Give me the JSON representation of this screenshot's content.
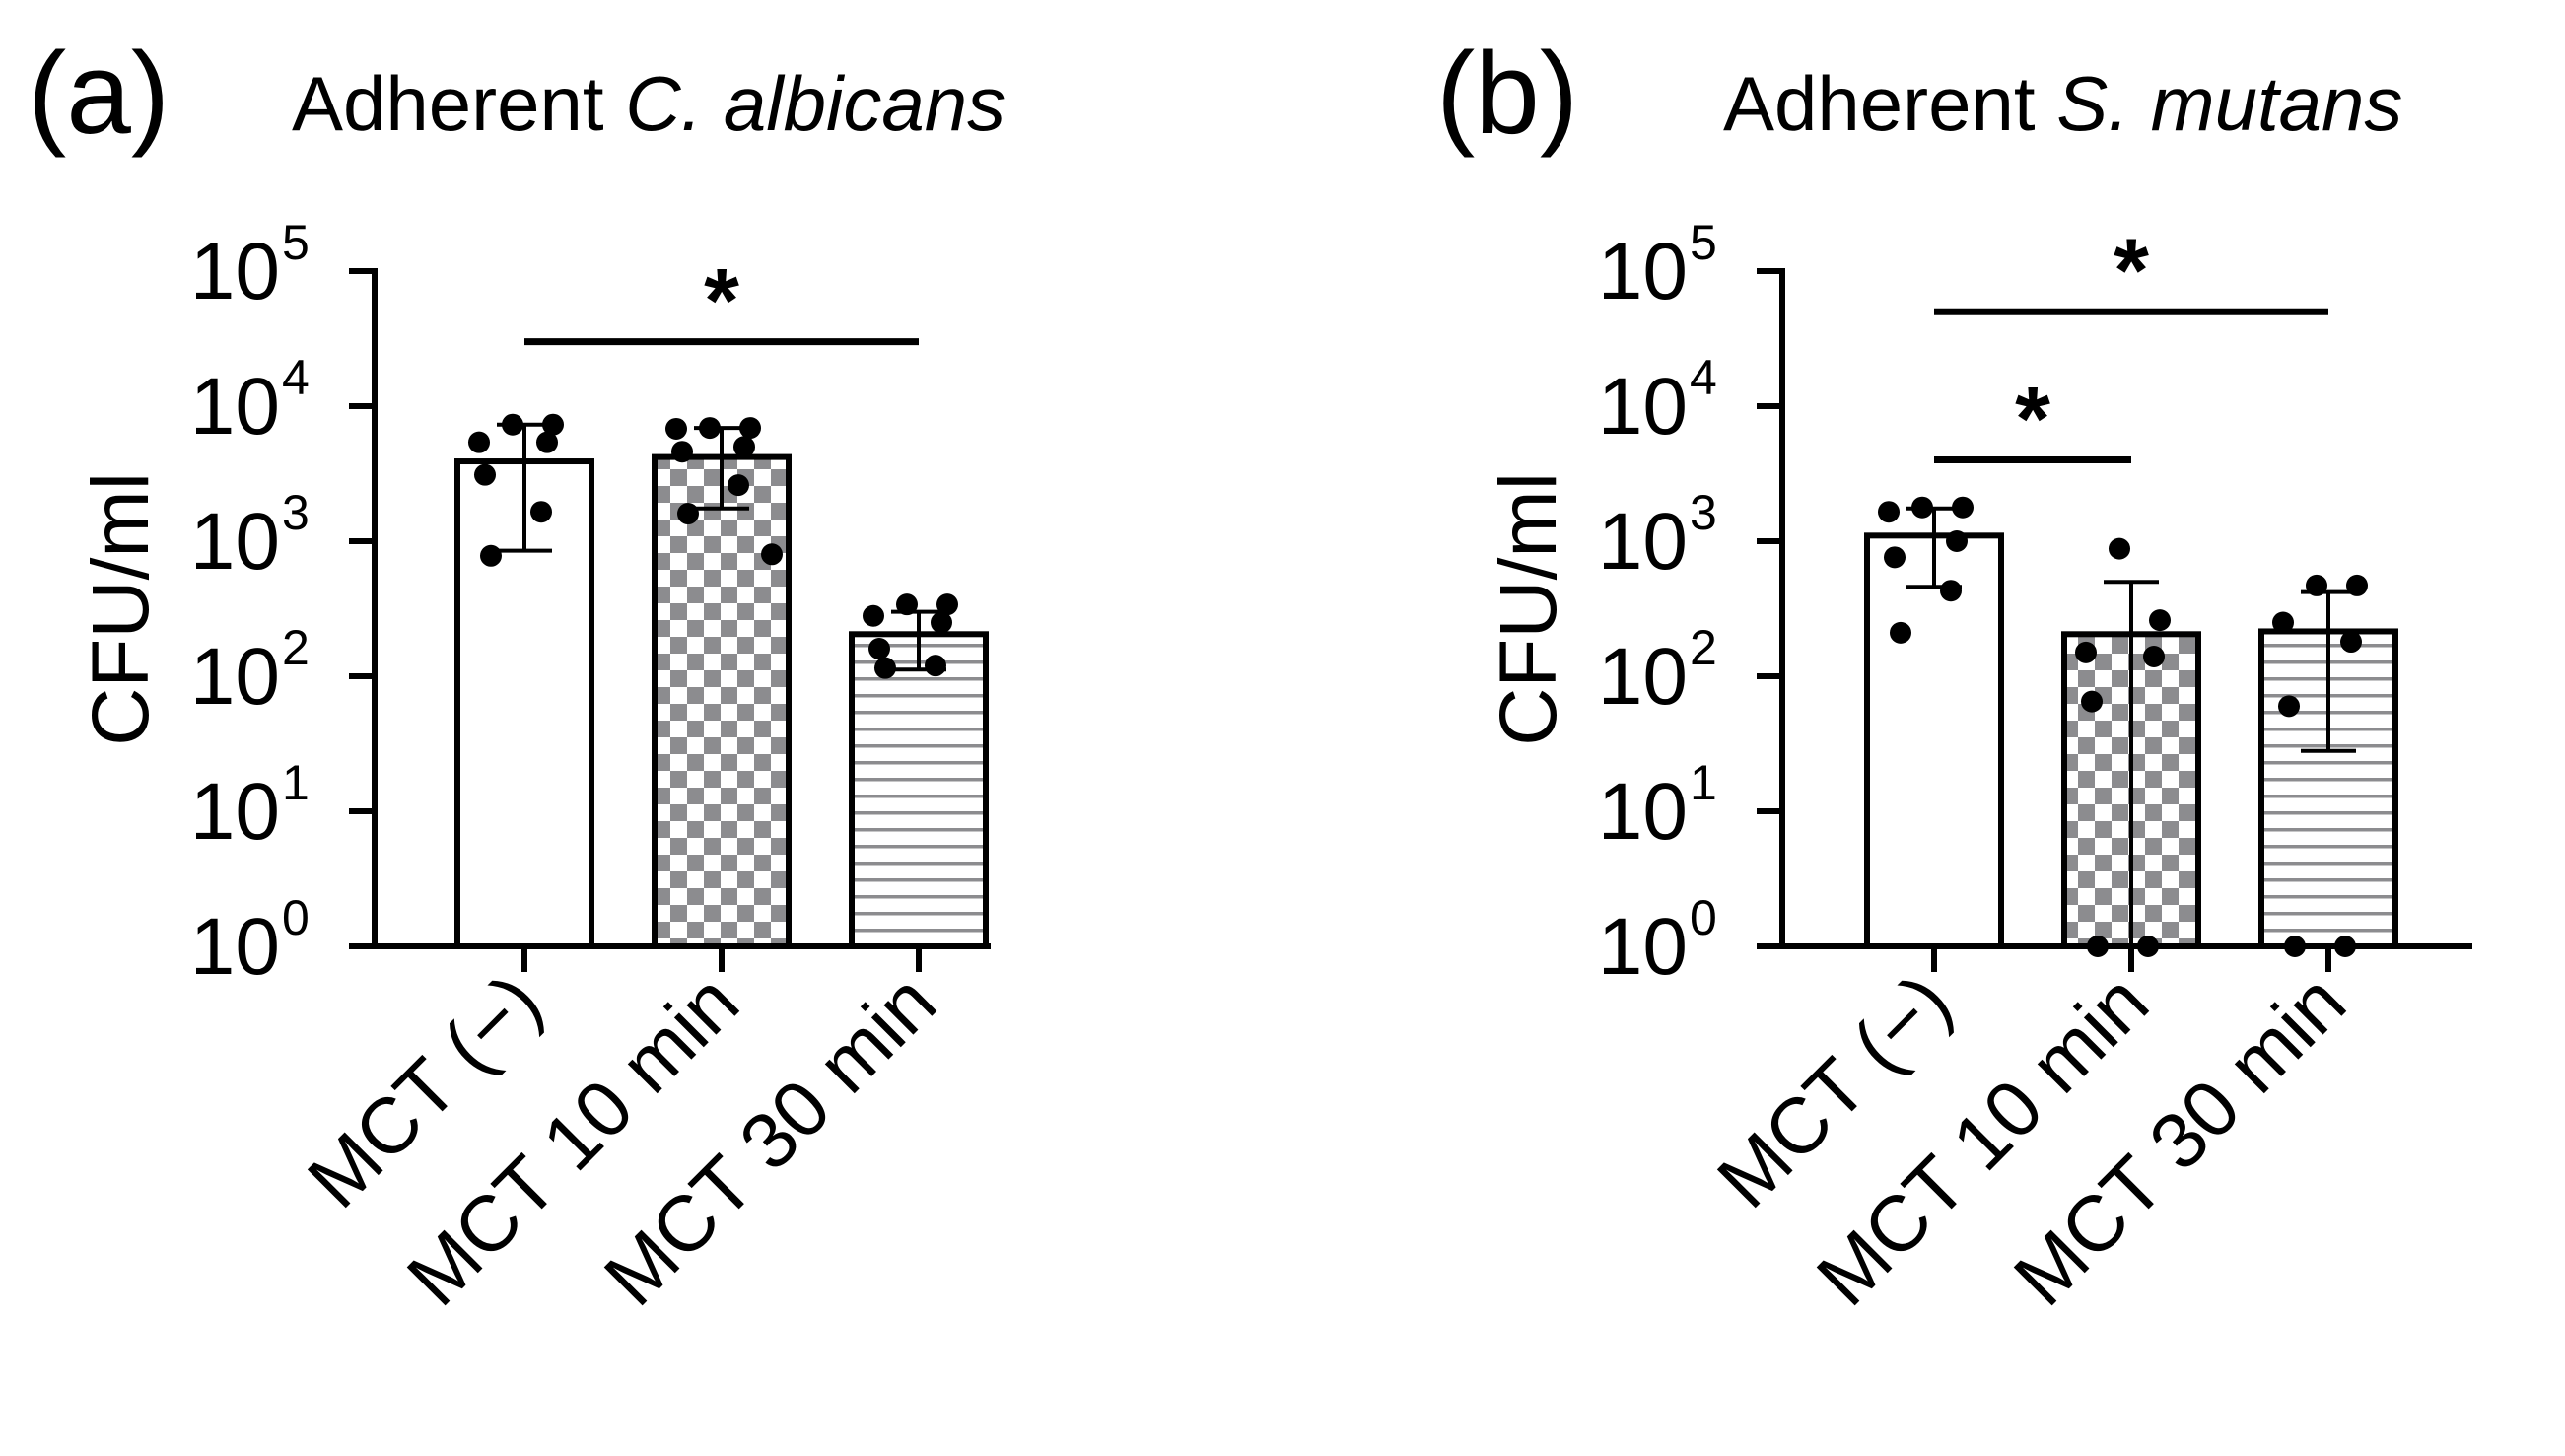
{
  "chart_data": [
    {
      "type": "bar",
      "panel_label": "(a)",
      "title_prefix": "Adherent ",
      "title_species": "C. albicans",
      "ylabel": "CFU/ml",
      "yscale": "log",
      "ylim": [
        1,
        100000
      ],
      "ytick_base": "10",
      "ytick_exponents": [
        "0",
        "1",
        "2",
        "3",
        "4",
        "5"
      ],
      "categories": [
        "MCT (−)",
        "MCT 10 min",
        "MCT 30 min"
      ],
      "patterns": [
        "none",
        "checker",
        "stripes"
      ],
      "values": [
        3900,
        4200,
        205
      ],
      "error_low": [
        850,
        1750,
        112
      ],
      "error_high": [
        7300,
        6900,
        300
      ],
      "points": [
        [
          7300,
          7300,
          5400,
          5400,
          3100,
          1650,
          780
        ],
        [
          6900,
          6900,
          6800,
          5000,
          4600,
          2600,
          1600,
          800
        ],
        [
          340,
          340,
          280,
          250,
          160,
          120,
          115
        ]
      ],
      "significance": [
        {
          "from": 0,
          "to": 2,
          "label": "*",
          "level": 30000
        }
      ]
    },
    {
      "type": "bar",
      "panel_label": "(b)",
      "title_prefix": "Adherent ",
      "title_species": "S. mutans",
      "ylabel": "CFU/ml",
      "yscale": "log",
      "ylim": [
        1,
        100000
      ],
      "ytick_base": "10",
      "ytick_exponents": [
        "0",
        "1",
        "2",
        "3",
        "4",
        "5"
      ],
      "categories": [
        "MCT (−)",
        "MCT 10 min",
        "MCT 30 min"
      ],
      "patterns": [
        "none",
        "checker",
        "stripes"
      ],
      "values": [
        1100,
        205,
        215
      ],
      "error_low": [
        460,
        1,
        28
      ],
      "error_high": [
        1750,
        500,
        420
      ],
      "points": [
        [
          1780,
          1780,
          1650,
          1000,
          760,
          430,
          210
        ],
        [
          880,
          260,
          150,
          140,
          65,
          1,
          1
        ],
        [
          470,
          470,
          250,
          180,
          60,
          1,
          1
        ]
      ],
      "significance": [
        {
          "from": 0,
          "to": 1,
          "label": "*",
          "level": 4000
        },
        {
          "from": 0,
          "to": 2,
          "label": "*",
          "level": 50000
        }
      ]
    }
  ],
  "colors": {
    "axis": "#000000",
    "bar_fill": "#ffffff",
    "pattern_gray": "#8c8c8f",
    "marker": "#000000"
  }
}
